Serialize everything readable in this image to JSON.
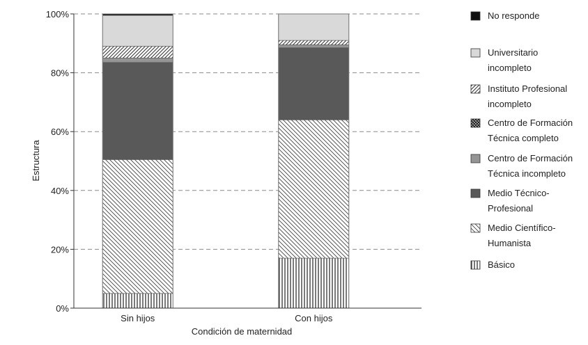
{
  "chart_data": {
    "type": "bar",
    "stacked": true,
    "categories": [
      "Sin hijos",
      "Con hijos"
    ],
    "xlabel": "Condición de maternidad",
    "ylabel": "Estructura",
    "ylim": [
      0,
      100
    ],
    "yticks": [
      "0%",
      "20%",
      "40%",
      "60%",
      "80%",
      "100%"
    ],
    "grid": "horizontal-dashed",
    "legend_position": "right",
    "series": [
      {
        "name": "Básico",
        "values": [
          5,
          17
        ],
        "pattern": "vertical-lines",
        "color": "#555555"
      },
      {
        "name": "Medio Científico-Humanista",
        "values": [
          45.5,
          47
        ],
        "pattern": "backslash-lines",
        "color": "#555555"
      },
      {
        "name": "Medio Técnico-Profesional",
        "values": [
          33,
          24.5
        ],
        "pattern": "solid",
        "color": "#595959"
      },
      {
        "name": "Centro de Formación Técnica incompleto",
        "values": [
          1.5,
          1
        ],
        "pattern": "solid",
        "color": "#959595"
      },
      {
        "name": "Centro de Formación Técnica completo",
        "values": [
          0,
          0
        ],
        "pattern": "speckle",
        "color": "#333333"
      },
      {
        "name": "Instituto Profesional incompleto",
        "values": [
          4,
          1.5
        ],
        "pattern": "slash-lines",
        "color": "#555555"
      },
      {
        "name": "Universitario incompleto",
        "values": [
          10.5,
          9
        ],
        "pattern": "solid",
        "color": "#d9d9d9"
      },
      {
        "name": "No responde",
        "values": [
          0.5,
          0
        ],
        "pattern": "solid",
        "color": "#111111"
      }
    ],
    "legend_order": [
      {
        "series": 7,
        "lines": [
          "No responde"
        ]
      },
      {
        "series": 6,
        "lines": [
          "Universitario",
          "incompleto"
        ]
      },
      {
        "series": 5,
        "lines": [
          "Instituto Profesional",
          "incompleto"
        ]
      },
      {
        "series": 4,
        "lines": [
          "Centro de Formación",
          "Técnica completo"
        ]
      },
      {
        "series": 3,
        "lines": [
          "Centro de Formación",
          "Técnica incompleto"
        ]
      },
      {
        "series": 2,
        "lines": [
          "Medio Técnico-",
          "Profesional"
        ]
      },
      {
        "series": 1,
        "lines": [
          "Medio Científico-",
          "Humanista"
        ]
      },
      {
        "series": 0,
        "lines": [
          "Básico"
        ]
      }
    ]
  }
}
